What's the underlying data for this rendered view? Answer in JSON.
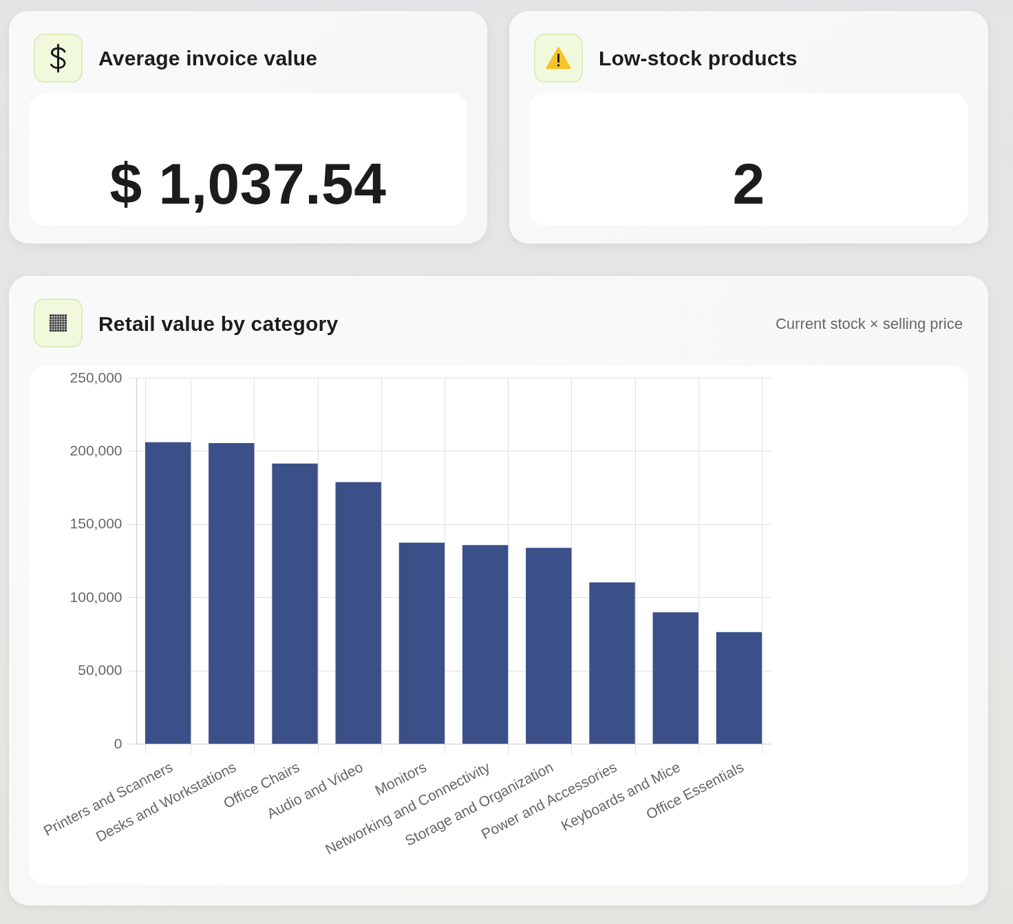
{
  "chart_data": [
    {
      "type": "other",
      "title": "Average invoice value",
      "annotations": [
        "$ 1,037.54"
      ]
    },
    {
      "type": "other",
      "title": "Low-stock products",
      "annotations": [
        "2"
      ]
    },
    {
      "type": "bar",
      "title": "Retail value by category",
      "subtitle": "Current stock × selling price",
      "categories": [
        "Printers and Scanners",
        "Desks and Workstations",
        "Office Chairs",
        "Audio and Video",
        "Monitors",
        "Networking and Connectivity",
        "Storage and Organization",
        "Power and Accessories",
        "Keyboards and Mice",
        "Office Essentials"
      ],
      "values": [
        206000,
        205400,
        191400,
        178700,
        137300,
        135700,
        133800,
        110200,
        89800,
        76300
      ],
      "color": "#3b5088",
      "ylim": [
        0,
        250000
      ],
      "yticks": [
        0,
        {
          "value": 50000,
          "label": "50,000"
        },
        {
          "value": 100000,
          "label": "100,000"
        },
        {
          "value": 150000,
          "label": "150,000"
        },
        {
          "value": 200000,
          "label": "200,000"
        },
        {
          "value": 250000,
          "label": "250,000"
        }
      ],
      "grid": true
    }
  ]
}
